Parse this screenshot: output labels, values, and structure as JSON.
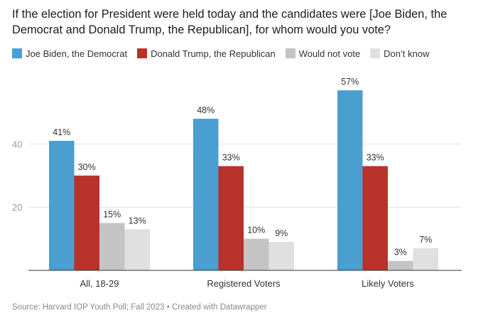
{
  "title": "If the election for President were held today and the candidates were [Joe Biden, the Democrat and Donald Trump, the Republican], for whom would you vote?",
  "chart_data": {
    "type": "bar",
    "title": "If the election for President were held today and the candidates were [Joe Biden, the Democrat and Donald Trump, the Republican], for whom would you vote?",
    "categories": [
      "All, 18-29",
      "Registered Voters",
      "Likely Voters"
    ],
    "series": [
      {
        "name": "Joe Biden, the Democrat",
        "color": "#4a9fd0",
        "values": [
          41,
          48,
          57
        ],
        "labels": [
          "41%",
          "48%",
          "57%"
        ]
      },
      {
        "name": "Donald Trump, the Republican",
        "color": "#b8312a",
        "values": [
          30,
          33,
          33
        ],
        "labels": [
          "30%",
          "33%",
          "33%"
        ]
      },
      {
        "name": "Would not vote",
        "color": "#c4c4c4",
        "values": [
          15,
          10,
          3
        ],
        "labels": [
          "15%",
          "10%",
          "3%"
        ]
      },
      {
        "name": "Don’t know",
        "color": "#e0e0e0",
        "values": [
          13,
          9,
          7
        ],
        "labels": [
          "13%",
          "9%",
          "7%"
        ]
      }
    ],
    "yticks": [
      20,
      40
    ],
    "ytick_labels": [
      "20",
      "40"
    ],
    "ylim": [
      0,
      60
    ],
    "grid": true,
    "legend": "top-left",
    "xlabel": "",
    "ylabel": ""
  },
  "source": "Source: Harvard IOP Youth Poll; Fall 2023 • Created with Datawrapper"
}
